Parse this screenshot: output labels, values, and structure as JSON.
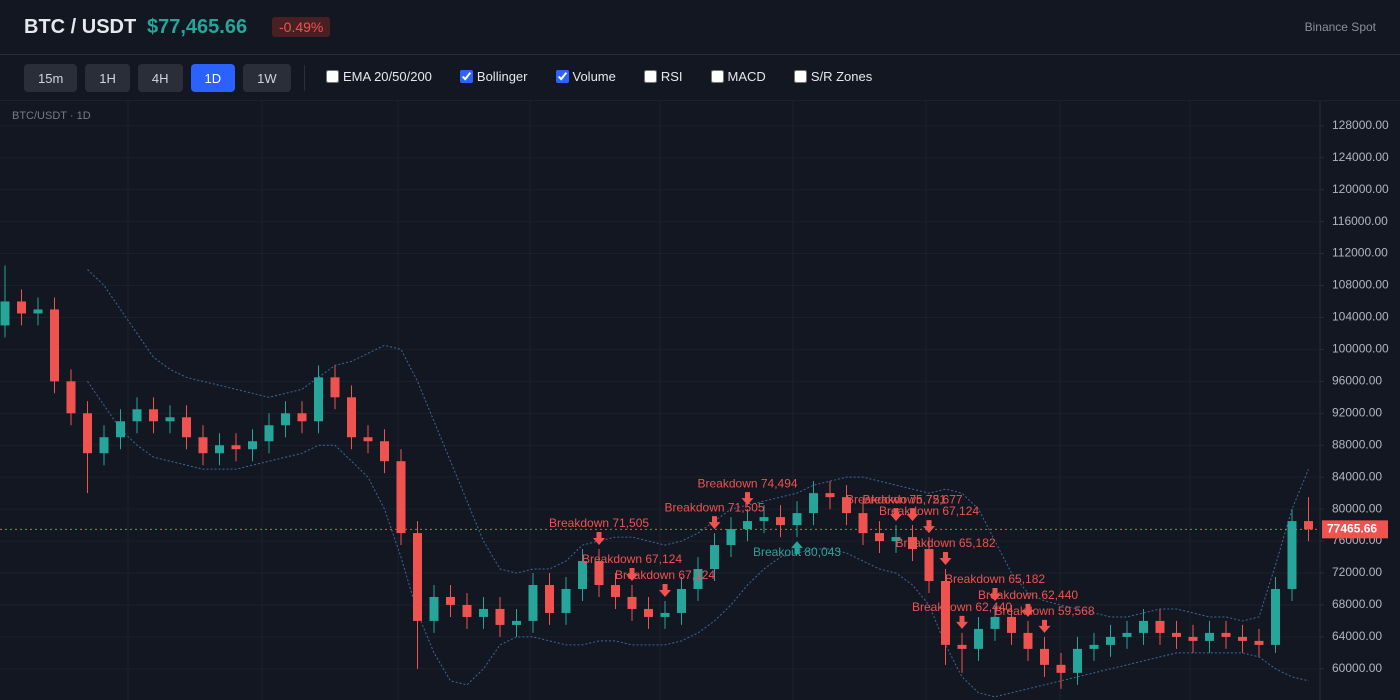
{
  "header": {
    "symbol": "BTC / USDT",
    "price": "$77,465.66",
    "change": "-0.49%",
    "exchange": "Binance Spot"
  },
  "toolbar": {
    "timeframes": [
      {
        "label": "15m",
        "active": false
      },
      {
        "label": "1H",
        "active": false
      },
      {
        "label": "4H",
        "active": false
      },
      {
        "label": "1D",
        "active": true
      },
      {
        "label": "1W",
        "active": false
      }
    ],
    "indicators": [
      {
        "label": "EMA 20/50/200",
        "checked": false
      },
      {
        "label": "Bollinger",
        "checked": true
      },
      {
        "label": "Volume",
        "checked": true
      },
      {
        "label": "RSI",
        "checked": false
      },
      {
        "label": "MACD",
        "checked": false
      },
      {
        "label": "S/R Zones",
        "checked": false
      }
    ]
  },
  "chart_data": {
    "type": "candlestick",
    "label": "BTC/USDT · 1D",
    "up_color": "#26a69a",
    "down_color": "#ef5350",
    "band_color": "#3d6a9e",
    "ylim": [
      56100,
      131100
    ],
    "yticks": [
      {
        "value": 60000,
        "label": "60000.00"
      },
      {
        "value": 64000,
        "label": "64000.00"
      },
      {
        "value": 68000,
        "label": "68000.00"
      },
      {
        "value": 72000,
        "label": "72000.00"
      },
      {
        "value": 76000,
        "label": "76000.00"
      },
      {
        "value": 80000,
        "label": "80000.00"
      },
      {
        "value": 84000,
        "label": "84000.00"
      },
      {
        "value": 88000,
        "label": "88000.00"
      },
      {
        "value": 92000,
        "label": "92000.00"
      },
      {
        "value": 96000,
        "label": "96000.00"
      },
      {
        "value": 100000,
        "label": "100000.00"
      },
      {
        "value": 104000,
        "label": "104000.00"
      },
      {
        "value": 108000,
        "label": "108000.00"
      },
      {
        "value": 112000,
        "label": "112000.00"
      },
      {
        "value": 116000,
        "label": "116000.00"
      },
      {
        "value": 120000,
        "label": "120000.00"
      },
      {
        "value": 124000,
        "label": "124000.00"
      },
      {
        "value": 128000,
        "label": "128000.00"
      }
    ],
    "grid": true,
    "last_price": {
      "value": 77465.66,
      "label": "77465.66"
    },
    "open": [
      103000,
      106000,
      104500,
      105000,
      96000,
      92000,
      87000,
      89000,
      91000,
      92500,
      91000,
      91500,
      89000,
      87000,
      88000,
      87500,
      88500,
      90500,
      92000,
      91000,
      96500,
      94000,
      89000,
      88500,
      86000,
      77000,
      66000,
      69000,
      68000,
      66500,
      67500,
      65500,
      66000,
      70500,
      67000,
      70000,
      73500,
      70500,
      69000,
      67500,
      66500,
      67000,
      70000,
      72500,
      75500,
      77500,
      78500,
      79000,
      78000,
      79500,
      82000,
      81500,
      79500,
      77000,
      76000,
      76500,
      75000,
      71000,
      63000,
      62500,
      65000,
      66500,
      64500,
      62500,
      60500,
      59500,
      62500,
      63000,
      64000,
      64500,
      66000,
      64500,
      64000,
      63500,
      64500,
      64000,
      63500,
      63000,
      70000,
      78500
    ],
    "high": [
      110500,
      107500,
      106500,
      106500,
      97500,
      93500,
      90500,
      92500,
      94000,
      94000,
      93000,
      93000,
      90500,
      89500,
      89500,
      90000,
      92000,
      93500,
      93500,
      98000,
      98000,
      95500,
      90500,
      90000,
      87500,
      78500,
      70500,
      70500,
      69500,
      69000,
      69000,
      67500,
      72000,
      72000,
      71500,
      75000,
      75000,
      72000,
      70500,
      69000,
      68500,
      71500,
      74000,
      77000,
      79000,
      80000,
      80500,
      80500,
      81000,
      83500,
      83500,
      83000,
      81000,
      78500,
      78000,
      78000,
      76500,
      72500,
      64500,
      66500,
      68000,
      68000,
      66000,
      64000,
      62000,
      64000,
      64500,
      65500,
      66000,
      67500,
      67500,
      66000,
      65500,
      66000,
      66000,
      65500,
      65000,
      71500,
      80000,
      81500
    ],
    "low": [
      101500,
      103000,
      103000,
      94500,
      90500,
      82000,
      85500,
      87500,
      89500,
      89500,
      89500,
      87500,
      85500,
      85500,
      86000,
      86000,
      87000,
      89000,
      89500,
      89500,
      92500,
      87500,
      87000,
      84500,
      75500,
      60000,
      64500,
      66500,
      65000,
      65000,
      64000,
      64000,
      64500,
      65500,
      65500,
      68500,
      69000,
      67500,
      66000,
      65000,
      65000,
      65500,
      68500,
      71000,
      74000,
      76000,
      77000,
      76500,
      76500,
      78000,
      80000,
      78000,
      75500,
      74500,
      74500,
      73500,
      69500,
      60500,
      59500,
      61000,
      63500,
      63000,
      61000,
      59000,
      57500,
      58000,
      61000,
      61500,
      62500,
      63000,
      63000,
      62500,
      62000,
      62000,
      62500,
      62000,
      61500,
      62000,
      68500,
      76000
    ],
    "close": [
      106000,
      104500,
      105000,
      96000,
      92000,
      87000,
      89000,
      91000,
      92500,
      91000,
      91500,
      89000,
      87000,
      88000,
      87500,
      88500,
      90500,
      92000,
      91000,
      96500,
      94000,
      89000,
      88500,
      86000,
      77000,
      66000,
      69000,
      68000,
      66500,
      67500,
      65500,
      66000,
      70500,
      67000,
      70000,
      73500,
      70500,
      69000,
      67500,
      66500,
      67000,
      70000,
      72500,
      75500,
      77500,
      78500,
      79000,
      78000,
      79500,
      82000,
      81500,
      79500,
      77000,
      76000,
      76500,
      75000,
      71000,
      63000,
      62500,
      65000,
      66500,
      64500,
      62500,
      60500,
      59500,
      62500,
      63000,
      64000,
      64500,
      66000,
      64500,
      64000,
      63500,
      64500,
      64000,
      63500,
      63000,
      70000,
      78500,
      77465.66
    ],
    "bollinger_upper": [
      null,
      null,
      null,
      null,
      null,
      110000,
      108000,
      105000,
      102000,
      99000,
      97500,
      96500,
      96000,
      95500,
      95000,
      94500,
      94000,
      94500,
      95000,
      96500,
      98000,
      98500,
      99500,
      100500,
      100000,
      96000,
      91000,
      86000,
      81000,
      76000,
      72500,
      72000,
      72500,
      72500,
      73500,
      75500,
      76000,
      76500,
      76500,
      76000,
      75500,
      76000,
      77000,
      78500,
      80000,
      80500,
      81000,
      81500,
      82000,
      83000,
      83500,
      84000,
      84000,
      83500,
      83000,
      82500,
      82000,
      82500,
      82000,
      80000,
      76000,
      72000,
      69500,
      68500,
      68000,
      67500,
      67000,
      66500,
      66500,
      67000,
      67500,
      67500,
      67000,
      66500,
      66500,
      66000,
      66500,
      73000,
      80000,
      85000
    ],
    "bollinger_lower": [
      null,
      null,
      null,
      null,
      null,
      96000,
      93000,
      90000,
      88000,
      86500,
      86000,
      85500,
      85000,
      85000,
      85000,
      85500,
      86000,
      86500,
      87000,
      88000,
      88000,
      86000,
      84000,
      80000,
      74000,
      67000,
      62000,
      58500,
      58000,
      60000,
      63000,
      64000,
      64000,
      63500,
      63000,
      63000,
      63500,
      63500,
      63000,
      63000,
      63000,
      63500,
      64500,
      66000,
      68000,
      70500,
      72500,
      74000,
      74500,
      75000,
      75000,
      74500,
      73500,
      72500,
      72000,
      70500,
      68000,
      63000,
      59000,
      57000,
      56500,
      57000,
      57500,
      58000,
      58500,
      59000,
      59500,
      60000,
      60500,
      61000,
      61500,
      62000,
      62000,
      62000,
      62000,
      62000,
      61500,
      60000,
      59000,
      58500
    ],
    "annotations": [
      {
        "text": "Breakdown 71,505",
        "index": 36,
        "kind": "down"
      },
      {
        "text": "Breakdown 67,124",
        "index": 38,
        "kind": "down"
      },
      {
        "text": "Breakdown 67,124",
        "index": 40,
        "kind": "down"
      },
      {
        "text": "Breakdown 71,505",
        "index": 43,
        "kind": "down"
      },
      {
        "text": "Breakdown 74,494",
        "index": 45,
        "kind": "down"
      },
      {
        "text": "Breakout 80,043",
        "index": 48,
        "kind": "up"
      },
      {
        "text": "Breakdown 75,751",
        "index": 54,
        "kind": "down"
      },
      {
        "text": "Breakdown 72,677",
        "index": 55,
        "kind": "down"
      },
      {
        "text": "Breakdown 67,124",
        "index": 56,
        "kind": "down"
      },
      {
        "text": "Breakdown 65,182",
        "index": 57,
        "kind": "down"
      },
      {
        "text": "Breakdown 62,440",
        "index": 58,
        "kind": "down"
      },
      {
        "text": "Breakdown 65,182",
        "index": 60,
        "kind": "down"
      },
      {
        "text": "Breakdown 62,440",
        "index": 62,
        "kind": "down"
      },
      {
        "text": "Breakdown 59,568",
        "index": 63,
        "kind": "down"
      }
    ]
  }
}
